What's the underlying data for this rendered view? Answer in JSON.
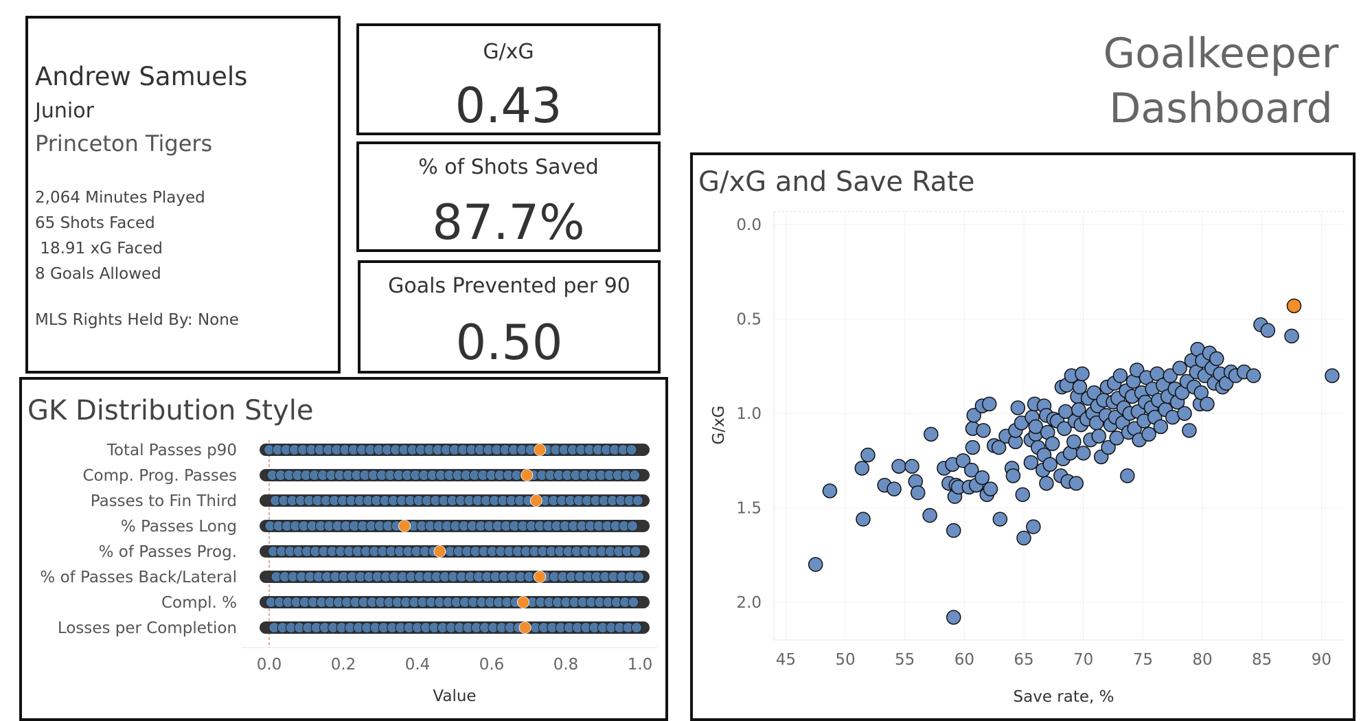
{
  "player": {
    "name": "Andrew Samuels",
    "class_year": "Junior",
    "team": "Princeton Tigers",
    "minutes_played": "2,064 Minutes Played",
    "shots_faced": "65 Shots Faced",
    "xg_faced": " 18.91 xG Faced",
    "goals_allowed": "8 Goals Allowed",
    "mls_rights": "MLS Rights Held By: None"
  },
  "kpis": {
    "gxg": {
      "label": "G/xG",
      "value": "0.43"
    },
    "shots_saved": {
      "label": "% of Shots Saved",
      "value": "87.7%"
    },
    "goals_prevented": {
      "label": "Goals Prevented per 90",
      "value": "0.50"
    }
  },
  "dashboard": {
    "title_line1": "Goalkeeper",
    "title_line2": "Dashboard"
  },
  "colors": {
    "peer": "#4e79a7",
    "highlight": "#f28e2b",
    "strip": "#333333"
  },
  "chart_data": [
    {
      "type": "scatter",
      "title": "GK Distribution Style",
      "xlabel": "Value",
      "xlim": [
        0,
        1
      ],
      "xticks": [
        "0.0",
        "0.2",
        "0.4",
        "0.6",
        "0.8",
        "1.0"
      ],
      "categories": [
        "Total Passes p90",
        "Comp. Prog. Passes",
        "Passes to Fin Third",
        "% Passes Long",
        "% of Passes Prog.",
        "% of Passes Back/Lateral",
        "Compl. %",
        "Losses per Completion"
      ],
      "highlight_values": [
        0.73,
        0.695,
        0.72,
        0.365,
        0.46,
        0.73,
        0.685,
        0.69
      ],
      "peer_distribution": "percentile values spread uniformly from 0.0 to 1.0 for each metric",
      "series": [
        {
          "name": "Andrew Samuels",
          "values": [
            0.73,
            0.695,
            0.72,
            0.365,
            0.46,
            0.73,
            0.685,
            0.69
          ]
        }
      ]
    },
    {
      "type": "scatter",
      "title": "G/xG and Save Rate",
      "xlabel": "Save rate, %",
      "ylabel": "G/xG",
      "xlim": [
        44,
        92
      ],
      "ylim": [
        2.2,
        -0.07
      ],
      "y_inverted": true,
      "xticks": [
        "45",
        "50",
        "55",
        "60",
        "65",
        "70",
        "75",
        "80",
        "85",
        "90"
      ],
      "yticks": [
        "0.0",
        "0.5",
        "1.0",
        "1.5",
        "2.0"
      ],
      "highlight": {
        "x": 87.7,
        "y": 0.43
      },
      "points": [
        [
          47.5,
          1.8
        ],
        [
          48.7,
          1.41
        ],
        [
          51.4,
          1.29
        ],
        [
          51.5,
          1.56
        ],
        [
          51.9,
          1.22
        ],
        [
          53.3,
          1.38
        ],
        [
          54.1,
          1.4
        ],
        [
          54.5,
          1.28
        ],
        [
          55.6,
          1.28
        ],
        [
          55.9,
          1.36
        ],
        [
          56.1,
          1.42
        ],
        [
          57.1,
          1.54
        ],
        [
          57.2,
          1.11
        ],
        [
          58.3,
          1.29
        ],
        [
          58.7,
          1.37
        ],
        [
          59.0,
          1.27
        ],
        [
          59.1,
          1.62
        ],
        [
          59.1,
          2.08
        ],
        [
          59.2,
          1.44
        ],
        [
          59.3,
          1.38
        ],
        [
          59.5,
          1.39
        ],
        [
          59.9,
          1.25
        ],
        [
          60.4,
          1.39
        ],
        [
          60.6,
          1.3
        ],
        [
          60.7,
          1.18
        ],
        [
          60.7,
          1.08
        ],
        [
          60.8,
          1.01
        ],
        [
          61.0,
          1.38
        ],
        [
          61.5,
          1.34
        ],
        [
          61.5,
          0.96
        ],
        [
          61.6,
          1.09
        ],
        [
          61.9,
          1.43
        ],
        [
          62.1,
          0.95
        ],
        [
          62.2,
          1.4
        ],
        [
          62.5,
          1.17
        ],
        [
          62.9,
          1.18
        ],
        [
          63.0,
          1.56
        ],
        [
          63.5,
          1.12
        ],
        [
          64.0,
          1.29
        ],
        [
          64.1,
          1.33
        ],
        [
          64.3,
          1.15
        ],
        [
          64.3,
          1.09
        ],
        [
          64.5,
          0.97
        ],
        [
          64.8,
          1.05
        ],
        [
          64.9,
          1.43
        ],
        [
          65.0,
          1.66
        ],
        [
          65.6,
          1.26
        ],
        [
          65.6,
          1.14
        ],
        [
          65.7,
          1.02
        ],
        [
          65.8,
          1.6
        ],
        [
          65.9,
          0.95
        ],
        [
          66.0,
          1.11
        ],
        [
          66.0,
          1.07
        ],
        [
          66.2,
          1.18
        ],
        [
          66.6,
          1.3
        ],
        [
          66.7,
          1.22
        ],
        [
          66.7,
          0.96
        ],
        [
          66.9,
          1.37
        ],
        [
          66.9,
          1.01
        ],
        [
          67.0,
          1.1
        ],
        [
          67.2,
          1.27
        ],
        [
          67.4,
          1.16
        ],
        [
          67.5,
          1.03
        ],
        [
          67.8,
          1.04
        ],
        [
          68.1,
          1.33
        ],
        [
          68.2,
          0.86
        ],
        [
          68.3,
          1.24
        ],
        [
          68.4,
          1.08
        ],
        [
          68.5,
          0.99
        ],
        [
          68.6,
          0.85
        ],
        [
          68.7,
          1.36
        ],
        [
          68.9,
          1.21
        ],
        [
          69.0,
          0.8
        ],
        [
          69.2,
          1.15
        ],
        [
          69.3,
          1.04
        ],
        [
          69.4,
          1.37
        ],
        [
          69.5,
          0.91
        ],
        [
          69.6,
          0.98
        ],
        [
          69.7,
          0.86
        ],
        [
          69.8,
          1.06
        ],
        [
          69.9,
          0.79
        ],
        [
          70.0,
          1.21
        ],
        [
          70.3,
          1.03
        ],
        [
          70.4,
          0.92
        ],
        [
          70.6,
          1.14
        ],
        [
          70.8,
          1.0
        ],
        [
          70.9,
          0.89
        ],
        [
          71.1,
          1.05
        ],
        [
          71.2,
          0.96
        ],
        [
          71.3,
          1.12
        ],
        [
          71.5,
          1.23
        ],
        [
          71.7,
          0.93
        ],
        [
          71.9,
          1.01
        ],
        [
          72.0,
          0.86
        ],
        [
          72.1,
          1.18
        ],
        [
          72.3,
          1.06
        ],
        [
          72.5,
          0.94
        ],
        [
          72.6,
          0.84
        ],
        [
          72.7,
          1.02
        ],
        [
          72.8,
          1.13
        ],
        [
          72.9,
          0.92
        ],
        [
          73.1,
          0.8
        ],
        [
          73.3,
          1.05
        ],
        [
          73.4,
          0.97
        ],
        [
          73.6,
          0.88
        ],
        [
          73.7,
          1.33
        ],
        [
          73.8,
          1.1
        ],
        [
          73.9,
          1.0
        ],
        [
          74.1,
          0.91
        ],
        [
          74.2,
          0.83
        ],
        [
          74.3,
          1.08
        ],
        [
          74.5,
          0.77
        ],
        [
          74.6,
          0.99
        ],
        [
          74.7,
          1.14
        ],
        [
          74.9,
          0.89
        ],
        [
          75.1,
          1.04
        ],
        [
          75.2,
          0.94
        ],
        [
          75.3,
          0.81
        ],
        [
          75.5,
          1.11
        ],
        [
          75.7,
          0.97
        ],
        [
          75.8,
          0.87
        ],
        [
          76.0,
          1.02
        ],
        [
          76.2,
          0.79
        ],
        [
          76.3,
          0.93
        ],
        [
          76.5,
          1.07
        ],
        [
          76.7,
          0.85
        ],
        [
          76.9,
          0.98
        ],
        [
          77.1,
          0.91
        ],
        [
          77.3,
          0.8
        ],
        [
          77.5,
          1.02
        ],
        [
          77.7,
          0.87
        ],
        [
          77.9,
          0.94
        ],
        [
          78.1,
          0.76
        ],
        [
          78.3,
          0.89
        ],
        [
          78.5,
          1.0
        ],
        [
          78.7,
          0.83
        ],
        [
          78.9,
          1.09
        ],
        [
          79.1,
          0.72
        ],
        [
          79.3,
          0.86
        ],
        [
          79.5,
          0.78
        ],
        [
          79.6,
          0.66
        ],
        [
          79.8,
          0.95
        ],
        [
          79.9,
          0.89
        ],
        [
          80.0,
          0.72
        ],
        [
          80.2,
          0.8
        ],
        [
          80.4,
          0.95
        ],
        [
          80.6,
          0.68
        ],
        [
          80.8,
          0.76
        ],
        [
          81.0,
          0.84
        ],
        [
          81.2,
          0.71
        ],
        [
          81.5,
          0.79
        ],
        [
          81.7,
          0.86
        ],
        [
          82.0,
          0.84
        ],
        [
          82.4,
          0.78
        ],
        [
          82.8,
          0.8
        ],
        [
          83.5,
          0.78
        ],
        [
          84.3,
          0.8
        ],
        [
          84.9,
          0.53
        ],
        [
          85.5,
          0.56
        ],
        [
          87.5,
          0.59
        ],
        [
          90.9,
          0.8
        ]
      ]
    }
  ]
}
